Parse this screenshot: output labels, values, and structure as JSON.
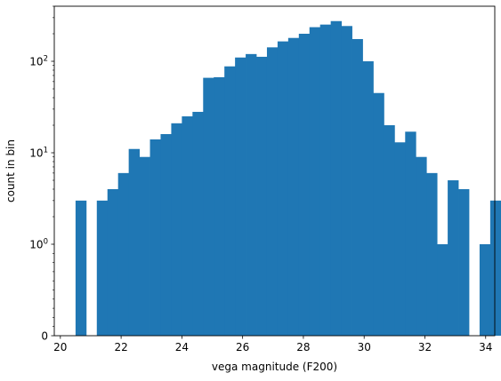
{
  "chart_data": {
    "type": "bar",
    "subtype": "histogram",
    "xlabel": "vega magnitude (F200)",
    "ylabel": "count in bin",
    "bar_color": "#1f77b4",
    "xlim": [
      19.8,
      34.3
    ],
    "xticks": [
      20,
      22,
      24,
      26,
      28,
      30,
      32,
      34
    ],
    "xtick_labels": [
      "20",
      "22",
      "24",
      "26",
      "28",
      "30",
      "32",
      "34"
    ],
    "yscale": "symlog",
    "ylim": [
      0,
      400
    ],
    "yticks": [
      0,
      1,
      10,
      100
    ],
    "ytick_labels": [
      "0",
      "10^0",
      "10^1",
      "10^2"
    ],
    "grid": false,
    "bin_start": 20.5,
    "bin_width": 0.35,
    "values": [
      3,
      0,
      3,
      4,
      6,
      11,
      9,
      14,
      16,
      21,
      25,
      28,
      66,
      67,
      88,
      110,
      120,
      112,
      142,
      165,
      180,
      200,
      236,
      252,
      275,
      243,
      175,
      100,
      45,
      20,
      13,
      17,
      9,
      6,
      1,
      5,
      4,
      0,
      1,
      3
    ]
  }
}
